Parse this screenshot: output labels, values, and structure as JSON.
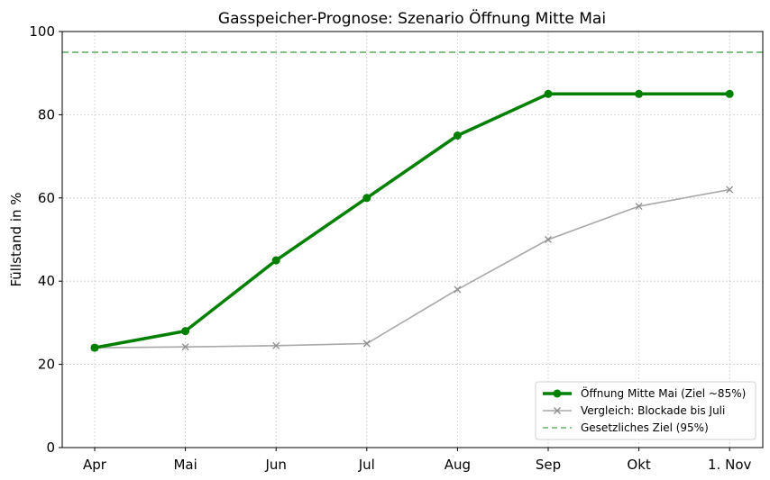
{
  "chart_data": {
    "type": "line",
    "title": "Gasspeicher-Prognose: Szenario Öffnung Mitte Mai",
    "xlabel": "",
    "ylabel": "Füllstand in %",
    "categories": [
      "Apr",
      "Mai",
      "Jun",
      "Jul",
      "Aug",
      "Sep",
      "Okt",
      "1. Nov"
    ],
    "ylim": [
      0,
      100
    ],
    "yticks": [
      0,
      20,
      40,
      60,
      80,
      100
    ],
    "grid": true,
    "legend_position": "bottom-right",
    "series": [
      {
        "name": "Öffnung Mitte Mai (Ziel ~85%)",
        "values": [
          24,
          28,
          45,
          60,
          75,
          85,
          85,
          85
        ],
        "color": "#008000",
        "marker": "circle",
        "style": "solid-thick"
      },
      {
        "name": "Vergleich: Blockade bis Juli",
        "values": [
          24,
          24.2,
          24.5,
          25,
          38,
          50,
          58,
          62
        ],
        "color": "#a8a8a8",
        "marker": "x",
        "style": "solid"
      }
    ],
    "reference_lines": [
      {
        "name": "Gesetzliches Ziel (95%)",
        "y": 95,
        "color": "#6ab36a",
        "style": "dashed"
      }
    ]
  }
}
